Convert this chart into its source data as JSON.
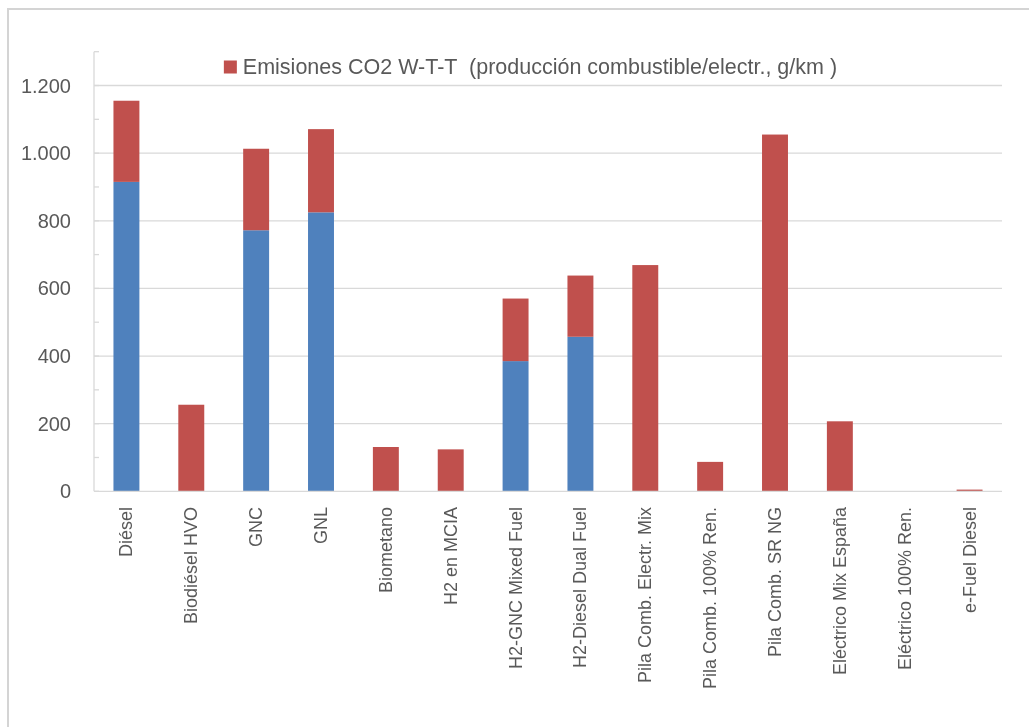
{
  "chart_data": {
    "type": "bar",
    "stacked": true,
    "categories": [
      "Diésel",
      "Biodiésel HVO",
      "GNC",
      "GNL",
      "Biometano",
      "H2 en MCIA",
      "H2-GNC Mixed Fuel",
      "H2-Diesel Dual Fuel",
      "Pila Comb. Electr. Mix",
      "Pila Comb. 100% Ren.",
      "Pila Comb. SR NG",
      "Eléctrico Mix España",
      "Eléctrico 100% Ren.",
      "e-Fuel Diesel"
    ],
    "series": [
      {
        "color": "#4f81bd",
        "values": [
          915,
          null,
          772,
          825,
          null,
          null,
          385,
          457,
          null,
          null,
          null,
          null,
          null,
          null
        ]
      },
      {
        "name": "Emisiones CO2 W-T-T  (producción combustible/electr., g/km )",
        "color": "#c0504d",
        "values": [
          240,
          256,
          241,
          246,
          131,
          124,
          185,
          181,
          669,
          87,
          1055,
          207,
          0,
          5
        ]
      }
    ],
    "ylim": [
      0,
      1300
    ],
    "yticks": [
      0,
      {
        "value": 100,
        "label": null
      },
      200,
      {
        "value": 300,
        "label": null
      },
      400,
      {
        "value": 500,
        "label": null
      },
      600,
      {
        "value": 700,
        "label": null
      },
      800,
      {
        "value": 900,
        "label": null
      },
      {
        "value": 1000,
        "label": "1.000"
      },
      {
        "value": 1100,
        "label": null
      },
      {
        "value": 1200,
        "label": "1.200"
      },
      {
        "value": 1300,
        "label": null
      }
    ],
    "grid": "y",
    "legend": "top"
  }
}
